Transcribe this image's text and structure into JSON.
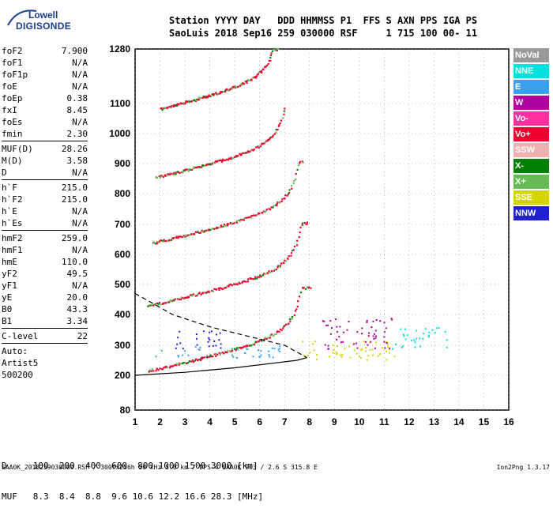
{
  "logo": {
    "line1": "Lowell",
    "line2": "DIGISONDE"
  },
  "header": {
    "line1": "Station YYYY DAY   DDD HHMMSS P1  FFS S AXN PPS IGA PS",
    "line2": "SaoLuis 2018 Sep16 259 030000 RSF     1 715 100 00- 11"
  },
  "params": {
    "group1": [
      {
        "name": "foF2",
        "value": "7.900"
      },
      {
        "name": "foF1",
        "value": "N/A"
      },
      {
        "name": "foF1p",
        "value": "N/A"
      },
      {
        "name": "foE",
        "value": "N/A"
      },
      {
        "name": "foEp",
        "value": "0.38"
      },
      {
        "name": "fxI",
        "value": "8.45"
      },
      {
        "name": "foEs",
        "value": "N/A"
      },
      {
        "name": "fmin",
        "value": "2.30"
      }
    ],
    "group2": [
      {
        "name": "MUF(D)",
        "value": "28.26"
      },
      {
        "name": "M(D)",
        "value": "3.58"
      },
      {
        "name": "D",
        "value": "N/A"
      }
    ],
    "group3": [
      {
        "name": "h`F",
        "value": "215.0"
      },
      {
        "name": "h`F2",
        "value": "215.0"
      },
      {
        "name": "h`E",
        "value": "N/A"
      },
      {
        "name": "h`Es",
        "value": "N/A"
      }
    ],
    "group4": [
      {
        "name": "hmF2",
        "value": "259.0"
      },
      {
        "name": "hmF1",
        "value": "N/A"
      },
      {
        "name": "hmE",
        "value": "110.0"
      },
      {
        "name": "yF2",
        "value": "49.5"
      },
      {
        "name": "yF1",
        "value": "N/A"
      },
      {
        "name": "yE",
        "value": "20.0"
      },
      {
        "name": "B0",
        "value": "43.3"
      },
      {
        "name": "B1",
        "value": "3.34"
      }
    ],
    "clevel": {
      "name": "C-level",
      "value": "22"
    },
    "misc": [
      "Auto:",
      "Artist5",
      "500200"
    ]
  },
  "legend": [
    {
      "label": "NoVal",
      "color": "#999999"
    },
    {
      "label": "NNE",
      "color": "#00e0e0"
    },
    {
      "label": "E",
      "color": "#3aa0f0"
    },
    {
      "label": "W",
      "color": "#b000a0"
    },
    {
      "label": "Vo-",
      "color": "#ff30a0"
    },
    {
      "label": "Vo+",
      "color": "#ee0030"
    },
    {
      "label": "SSW",
      "color": "#f0b0b0"
    },
    {
      "label": "X-",
      "color": "#008000"
    },
    {
      "label": "X+",
      "color": "#66bb55"
    },
    {
      "label": "SSE",
      "color": "#d4d400"
    },
    {
      "label": "NNW",
      "color": "#2020d0"
    }
  ],
  "bottom": {
    "row1": "D     100  200  400  600  800 1000 1500 3000 [km]",
    "row2": "MUF   8.3  8.4  8.8  9.6 10.6 12.2 16.6 28.3 [MHz]"
  },
  "footer": "SAA0K_2018259030000.RSF / 300fx256h 50 kHz 5.0 km / DPS-4 SAA0K 903 / 2.6 S 315.8 E",
  "version": "Ion2Png 1.3.17",
  "chart_data": {
    "type": "scatter",
    "title": "",
    "xlabel": "",
    "ylabel": "",
    "xlim": [
      1,
      16
    ],
    "ylim_display": [
      80,
      1280
    ],
    "x_ticks": [
      1,
      2,
      3,
      4,
      5,
      6,
      7,
      8,
      9,
      10,
      11,
      12,
      13,
      14,
      15,
      16
    ],
    "y_ticks": [
      80,
      200,
      300,
      400,
      500,
      600,
      700,
      800,
      900,
      1000,
      1100,
      1280
    ],
    "traces": [
      {
        "name": "1st hop O",
        "color": "#ee0030",
        "fmin": 1.5,
        "fmax": 8.0,
        "base_km": 215,
        "knee": 8.0
      },
      {
        "name": "2nd hop",
        "color": "#ee0030",
        "fmin": 1.5,
        "fmax": 7.9,
        "base_km": 430,
        "knee": 8.0
      },
      {
        "name": "3rd hop",
        "color": "#ee0030",
        "fmin": 1.7,
        "fmax": 7.7,
        "base_km": 640,
        "knee": 7.9
      },
      {
        "name": "4th hop",
        "color": "#ee0030",
        "fmin": 1.8,
        "fmax": 7.0,
        "base_km": 855,
        "knee": 7.4
      },
      {
        "name": "5th hop",
        "color": "#ee0030",
        "fmin": 2.0,
        "fmax": 6.7,
        "base_km": 1085,
        "knee": 7.0
      }
    ],
    "profile": [
      {
        "f": 1.0,
        "h": 200
      },
      {
        "f": 3.0,
        "h": 210
      },
      {
        "f": 5.0,
        "h": 225
      },
      {
        "f": 6.5,
        "h": 240
      },
      {
        "f": 7.5,
        "h": 250
      },
      {
        "f": 7.9,
        "h": 259
      }
    ],
    "profile_dashed": [
      {
        "f": 1.0,
        "h": 470
      },
      {
        "f": 2.5,
        "h": 400
      },
      {
        "f": 4.0,
        "h": 360
      },
      {
        "f": 5.5,
        "h": 330
      },
      {
        "f": 7.0,
        "h": 300
      },
      {
        "f": 7.9,
        "h": 259
      }
    ],
    "spread_clusters": [
      {
        "color": "#d4d400",
        "f0": 7.7,
        "f1": 11.4,
        "h0": 250,
        "h1": 320
      },
      {
        "color": "#b000a0",
        "f0": 8.5,
        "f1": 11.3,
        "h0": 290,
        "h1": 390
      },
      {
        "color": "#00e0e0",
        "f0": 11.3,
        "f1": 13.5,
        "h0": 290,
        "h1": 360
      },
      {
        "color": "#3aa0f0",
        "f0": 1.8,
        "f1": 7.0,
        "h0": 260,
        "h1": 300
      },
      {
        "color": "#2020d0",
        "f0": 2.5,
        "f1": 4.5,
        "h0": 290,
        "h1": 350
      }
    ]
  }
}
